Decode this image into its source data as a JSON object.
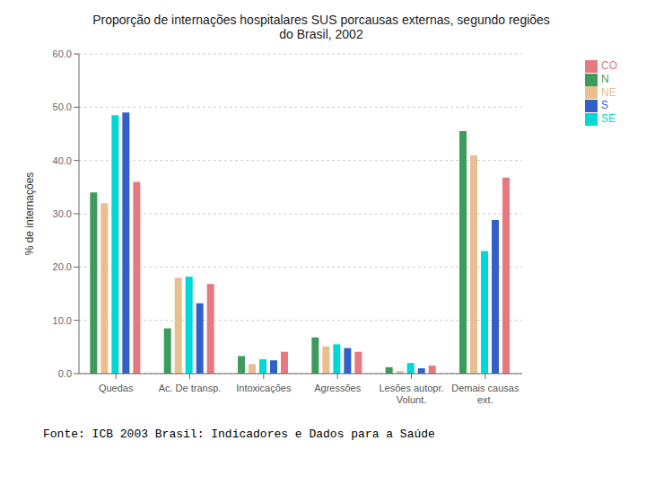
{
  "chart_data": {
    "type": "bar",
    "title": "Proporção de internações hospitalares SUS porcausas externas, segundo regiões\ndo Brasil, 2002",
    "ylabel": "% de internações",
    "categories": [
      "Quedas",
      "Ac. De transp.",
      "Intoxicações",
      "Agressões",
      "Lesões autopr.\nVolunt.",
      "Demais causas\next."
    ],
    "series": [
      {
        "name": "N",
        "color": "#3c9c5c",
        "values": [
          34.0,
          8.5,
          3.3,
          6.8,
          1.2,
          45.5
        ]
      },
      {
        "name": "NE",
        "color": "#e8c090",
        "values": [
          32.0,
          18.0,
          1.8,
          5.1,
          0.5,
          41.0
        ]
      },
      {
        "name": "SE",
        "color": "#00d8d8",
        "values": [
          48.5,
          18.2,
          2.7,
          5.5,
          2.0,
          23.0
        ]
      },
      {
        "name": "S",
        "color": "#3060c8",
        "values": [
          49.0,
          13.2,
          2.5,
          4.8,
          1.0,
          28.8
        ]
      },
      {
        "name": "CO",
        "color": "#e87880",
        "values": [
          36.0,
          16.8,
          4.1,
          4.1,
          1.5,
          36.8
        ]
      }
    ],
    "ylim": [
      0,
      60
    ],
    "yticks": [
      {
        "value": 0,
        "label": "0.0"
      },
      {
        "value": 10,
        "label": "10.0"
      },
      {
        "value": 20,
        "label": "20.0"
      },
      {
        "value": 30,
        "label": "30.0"
      },
      {
        "value": 40,
        "label": "40.0"
      },
      {
        "value": 50,
        "label": "50.0"
      },
      {
        "value": 60,
        "label": "60.0"
      }
    ],
    "grid": true,
    "legend": "upper right",
    "annotations": [
      "Fonte: ICB 2003 Brasil: Indicadores e Dados para a Saúde"
    ]
  }
}
